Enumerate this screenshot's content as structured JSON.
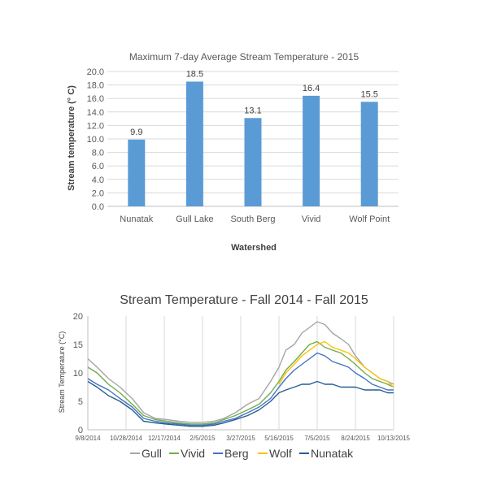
{
  "chart_data": [
    {
      "type": "bar",
      "title": "Maximum 7-day Average Stream Temperature - 2015",
      "xlabel": "Watershed",
      "ylabel": "Stream temperature (° C)",
      "categories": [
        "Nunatak",
        "Gull Lake",
        "South Berg",
        "Vivid",
        "Wolf Point"
      ],
      "values": [
        9.9,
        18.5,
        13.1,
        16.4,
        15.5
      ],
      "data_labels": [
        "9.9",
        "18.5",
        "13.1",
        "16.4",
        "15.5"
      ],
      "ylim": [
        0,
        20
      ],
      "yticks": [
        "0.0",
        "2.0",
        "4.0",
        "6.0",
        "8.0",
        "10.0",
        "12.0",
        "14.0",
        "16.0",
        "18.0",
        "20.0"
      ],
      "grid": true,
      "bar_color": "#5b9bd5"
    },
    {
      "type": "line",
      "title": "Stream Temperature - Fall 2014 - Fall 2015",
      "ylabel": "Stream Temperature (°C)",
      "xlim": [
        "2014-09-08",
        "2015-10-13"
      ],
      "xticks": [
        "9/8/2014",
        "10/28/2014",
        "12/17/2014",
        "2/5/2015",
        "3/27/2015",
        "5/16/2015",
        "7/5/2015",
        "8/24/2015",
        "10/13/2015"
      ],
      "ylim": [
        0,
        20
      ],
      "yticks": [
        "0",
        "5",
        "10",
        "15",
        "20"
      ],
      "grid": "vertical",
      "legend_position": "bottom",
      "series": [
        {
          "name": "Gull",
          "color": "#a5a5a5",
          "x": [
            "2014-09-08",
            "2014-09-20",
            "2014-10-05",
            "2014-10-20",
            "2014-11-05",
            "2014-11-20",
            "2014-12-05",
            "2014-12-20",
            "2015-01-05",
            "2015-01-20",
            "2015-02-05",
            "2015-02-20",
            "2015-03-05",
            "2015-03-20",
            "2015-04-05",
            "2015-04-20",
            "2015-05-05",
            "2015-05-16",
            "2015-05-25",
            "2015-06-05",
            "2015-06-15",
            "2015-06-25",
            "2015-07-05",
            "2015-07-15",
            "2015-07-25",
            "2015-08-05",
            "2015-08-15",
            "2015-08-24",
            "2015-09-05",
            "2015-09-15",
            "2015-09-25",
            "2015-10-05",
            "2015-10-13"
          ],
          "y": [
            12.5,
            11,
            9,
            7.5,
            5.5,
            3,
            2,
            1.8,
            1.5,
            1.3,
            1.3,
            1.5,
            2,
            3,
            4.5,
            5.5,
            8.5,
            11,
            14,
            15,
            17,
            18,
            19,
            18.5,
            17,
            16,
            15,
            13,
            11,
            10,
            9,
            8.5,
            8
          ]
        },
        {
          "name": "Vivid",
          "color": "#70ad47",
          "x": [
            "2014-09-08",
            "2014-09-20",
            "2014-10-05",
            "2014-10-20",
            "2014-11-05",
            "2014-11-20",
            "2014-12-05",
            "2014-12-20",
            "2015-01-05",
            "2015-01-20",
            "2015-02-05",
            "2015-02-20",
            "2015-03-05",
            "2015-03-20",
            "2015-04-05",
            "2015-04-20",
            "2015-05-05",
            "2015-05-16",
            "2015-05-25",
            "2015-06-05",
            "2015-06-15",
            "2015-06-25",
            "2015-07-05",
            "2015-07-15",
            "2015-07-25",
            "2015-08-05",
            "2015-08-15",
            "2015-08-24",
            "2015-09-05",
            "2015-09-15",
            "2015-09-25",
            "2015-10-05",
            "2015-10-13"
          ],
          "y": [
            11,
            10,
            8,
            6.5,
            4.5,
            2.5,
            1.8,
            1.5,
            1.2,
            1,
            1,
            1.2,
            1.8,
            2.5,
            3.5,
            4.5,
            6.5,
            8.5,
            10.5,
            12,
            13.5,
            15,
            15.5,
            14.5,
            14,
            13.5,
            12.5,
            11.5,
            10,
            9,
            8.5,
            8,
            7.5
          ]
        },
        {
          "name": "Berg",
          "color": "#4472c4",
          "x": [
            "2014-09-08",
            "2014-09-20",
            "2014-10-05",
            "2014-10-20",
            "2014-11-05",
            "2014-11-20",
            "2014-12-05",
            "2014-12-20",
            "2015-01-05",
            "2015-01-20",
            "2015-02-05",
            "2015-02-20",
            "2015-03-05",
            "2015-03-20",
            "2015-04-05",
            "2015-04-20",
            "2015-05-05",
            "2015-05-16",
            "2015-05-25",
            "2015-06-05",
            "2015-06-15",
            "2015-06-25",
            "2015-07-05",
            "2015-07-15",
            "2015-07-25",
            "2015-08-05",
            "2015-08-15",
            "2015-08-24",
            "2015-09-05",
            "2015-09-15",
            "2015-09-25",
            "2015-10-05",
            "2015-10-13"
          ],
          "y": [
            9,
            8,
            7,
            5.5,
            4,
            2,
            1.5,
            1.2,
            1,
            0.8,
            0.8,
            1,
            1.5,
            2,
            3,
            4,
            5.5,
            7.5,
            9,
            10.5,
            11.5,
            12.5,
            13.5,
            13,
            12,
            11.5,
            11,
            10,
            9,
            8,
            7.5,
            7,
            7
          ]
        },
        {
          "name": "Wolf",
          "color": "#ffc000",
          "x": [
            "2015-05-16",
            "2015-05-25",
            "2015-06-05",
            "2015-06-15",
            "2015-06-25",
            "2015-07-05",
            "2015-07-15",
            "2015-07-25",
            "2015-08-05",
            "2015-08-15",
            "2015-08-24",
            "2015-09-05",
            "2015-09-15",
            "2015-09-25",
            "2015-10-05",
            "2015-10-13"
          ],
          "y": [
            8,
            10,
            11.5,
            13,
            14,
            15,
            15.5,
            14.5,
            14,
            13.5,
            12.5,
            11,
            10,
            9,
            8.5,
            7.5
          ]
        },
        {
          "name": "Nunatak",
          "color": "#255e91",
          "x": [
            "2014-09-08",
            "2014-09-20",
            "2014-10-05",
            "2014-10-20",
            "2014-11-05",
            "2014-11-20",
            "2014-12-05",
            "2014-12-20",
            "2015-01-05",
            "2015-01-20",
            "2015-02-05",
            "2015-02-20",
            "2015-03-05",
            "2015-03-20",
            "2015-04-05",
            "2015-04-20",
            "2015-05-05",
            "2015-05-16",
            "2015-05-25",
            "2015-06-05",
            "2015-06-15",
            "2015-06-25",
            "2015-07-05",
            "2015-07-15",
            "2015-07-25",
            "2015-08-05",
            "2015-08-15",
            "2015-08-24",
            "2015-09-05",
            "2015-09-15",
            "2015-09-25",
            "2015-10-05",
            "2015-10-13"
          ],
          "y": [
            8.5,
            7.5,
            6,
            5,
            3.5,
            1.5,
            1.2,
            1,
            0.8,
            0.6,
            0.6,
            0.8,
            1.2,
            1.8,
            2.5,
            3.5,
            5,
            6.5,
            7,
            7.5,
            8,
            8,
            8.5,
            8,
            8,
            7.5,
            7.5,
            7.5,
            7,
            7,
            7,
            6.5,
            6.5
          ]
        }
      ]
    }
  ]
}
